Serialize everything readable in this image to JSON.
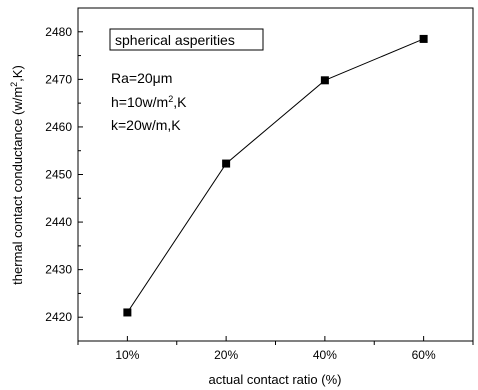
{
  "chart_data": {
    "type": "line",
    "title": "",
    "xlabel": "actual contact ratio (%)",
    "ylabel_main": "thermal contact conductance (w/m",
    "ylabel_sup": "2",
    "ylabel_tail": ",K)",
    "categories": [
      "10%",
      "20%",
      "40%",
      "60%"
    ],
    "series": [
      {
        "values": [
          2421,
          2452.3,
          2469.8,
          2478.5
        ]
      }
    ],
    "ylim": [
      2415,
      2485
    ],
    "yticks": [
      2420,
      2430,
      2440,
      2450,
      2460,
      2470,
      2480
    ],
    "grid": false,
    "legend": "none",
    "marker": "square",
    "line_color": "#000000",
    "annotations": {
      "box_label": "spherical asperities",
      "ra": "Ra=20μm",
      "h_main": "h=10w/m",
      "h_sup": "2",
      "h_tail": ",K",
      "k": "k=20w/m,K"
    }
  }
}
